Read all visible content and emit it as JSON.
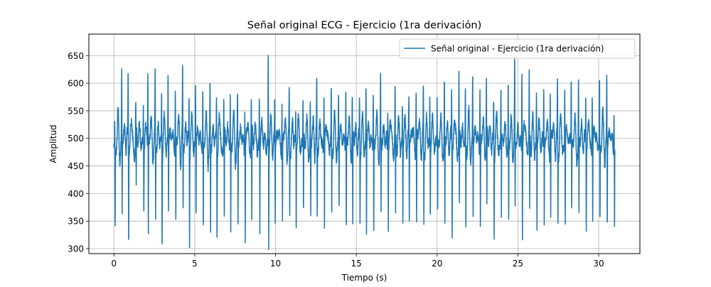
{
  "chart_data": {
    "type": "line",
    "title": "Señal original ECG - Ejercicio (1ra derivación)",
    "xlabel": "Tiempo (s)",
    "ylabel": "Amplitud",
    "xlim": [
      -1.55,
      32.55
    ],
    "ylim": [
      291,
      689
    ],
    "xticks": [
      0,
      5,
      10,
      15,
      20,
      25,
      30
    ],
    "yticks": [
      300,
      350,
      400,
      450,
      500,
      550,
      600,
      650
    ],
    "grid": true,
    "legend_position": "upper right",
    "line_color": "#1f77b4",
    "series": [
      {
        "name": "Señal original - Ejercicio (1ra derivación)",
        "color": "#1f77b4",
        "duration": 31.0,
        "baseline": 490,
        "beat_times": [
          0.05,
          0.48,
          0.88,
          1.35,
          1.82,
          2.1,
          2.55,
          2.95,
          3.35,
          3.8,
          4.25,
          4.65,
          5.05,
          5.5,
          5.95,
          6.35,
          6.8,
          7.2,
          7.65,
          8.1,
          8.5,
          9.0,
          9.55,
          9.95,
          10.4,
          10.85,
          11.25,
          11.7,
          12.15,
          12.55,
          13.0,
          13.45,
          13.9,
          14.35,
          14.75,
          15.2,
          15.6,
          16.05,
          16.5,
          16.95,
          17.4,
          17.85,
          18.25,
          18.7,
          19.15,
          19.55,
          20.0,
          20.45,
          20.9,
          21.35,
          21.75,
          22.2,
          22.65,
          23.05,
          23.5,
          23.95,
          24.4,
          24.8,
          25.25,
          25.7,
          26.15,
          26.6,
          27.0,
          27.45,
          27.9,
          28.3,
          28.75,
          29.2,
          29.6,
          30.05,
          30.5,
          30.95
        ],
        "r_peak_values": [
          520,
          610,
          610,
          560,
          570,
          620,
          600,
          595,
          610,
          600,
          605,
          580,
          600,
          600,
          580,
          585,
          570,
          575,
          570,
          575,
          575,
          585,
          670,
          570,
          570,
          575,
          565,
          570,
          570,
          585,
          600,
          575,
          580,
          595,
          580,
          565,
          605,
          590,
          600,
          575,
          570,
          570,
          565,
          600,
          580,
          585,
          570,
          600,
          600,
          605,
          580,
          610,
          605,
          600,
          575,
          590,
          600,
          630,
          640,
          600,
          590,
          605,
          600,
          600,
          600,
          605,
          595,
          595,
          600,
          605,
          605,
          560
        ],
        "s_trough_values": [
          335,
          350,
          320,
          390,
          380,
          320,
          345,
          320,
          360,
          345,
          360,
          320,
          350,
          330,
          320,
          335,
          330,
          320,
          325,
          330,
          320,
          345,
          315,
          340,
          340,
          345,
          350,
          345,
          340,
          350,
          335,
          345,
          375,
          335,
          310,
          355,
          335,
          340,
          355,
          360,
          345,
          355,
          345,
          330,
          345,
          360,
          345,
          325,
          325,
          345,
          325,
          345,
          335,
          355,
          340,
          345,
          345,
          360,
          330,
          350,
          330,
          350,
          335,
          340,
          330,
          360,
          340,
          350,
          345,
          335,
          335,
          335
        ]
      }
    ]
  }
}
